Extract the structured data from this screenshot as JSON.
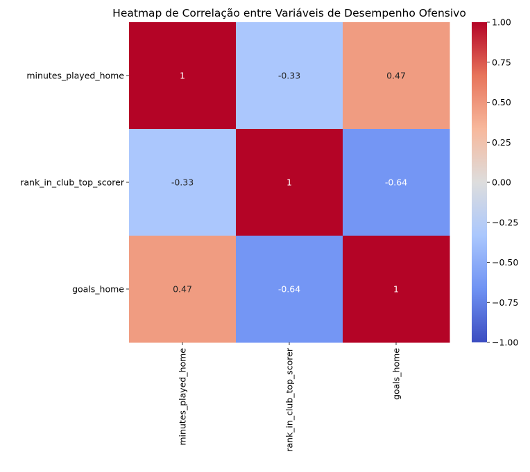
{
  "chart_data": {
    "type": "heatmap",
    "title": "Heatmap de Correlação entre Variáveis de Desempenho Ofensivo",
    "xlabel": "",
    "ylabel": "",
    "x_categories": [
      "minutes_played_home",
      "rank_in_club_top_scorer",
      "goals_home"
    ],
    "y_categories": [
      "minutes_played_home",
      "rank_in_club_top_scorer",
      "goals_home"
    ],
    "values": [
      [
        1.0,
        -0.33,
        0.47
      ],
      [
        -0.33,
        1.0,
        -0.64
      ],
      [
        0.47,
        -0.64,
        1.0
      ]
    ],
    "annotations": [
      [
        "1",
        "-0.33",
        "0.47"
      ],
      [
        "-0.33",
        "1",
        "-0.64"
      ],
      [
        "0.47",
        "-0.64",
        "1"
      ]
    ],
    "colormap": "coolwarm",
    "vmin": -1.0,
    "vmax": 1.0,
    "colorbar_ticks": [
      "1.00",
      "0.75",
      "0.50",
      "0.25",
      "0.00",
      "−0.25",
      "−0.50",
      "−0.75",
      "−1.00"
    ],
    "colorbar_tick_values": [
      1.0,
      0.75,
      0.5,
      0.25,
      0.0,
      -0.25,
      -0.5,
      -0.75,
      -1.0
    ],
    "colors": {
      "cmap_stops": [
        "#3b4cc0",
        "#6f92f3",
        "#aac7fd",
        "#dddddd",
        "#f7b89c",
        "#e7745b",
        "#b40426"
      ],
      "annot_light": "#ffffff",
      "annot_dark": "#262626"
    }
  }
}
